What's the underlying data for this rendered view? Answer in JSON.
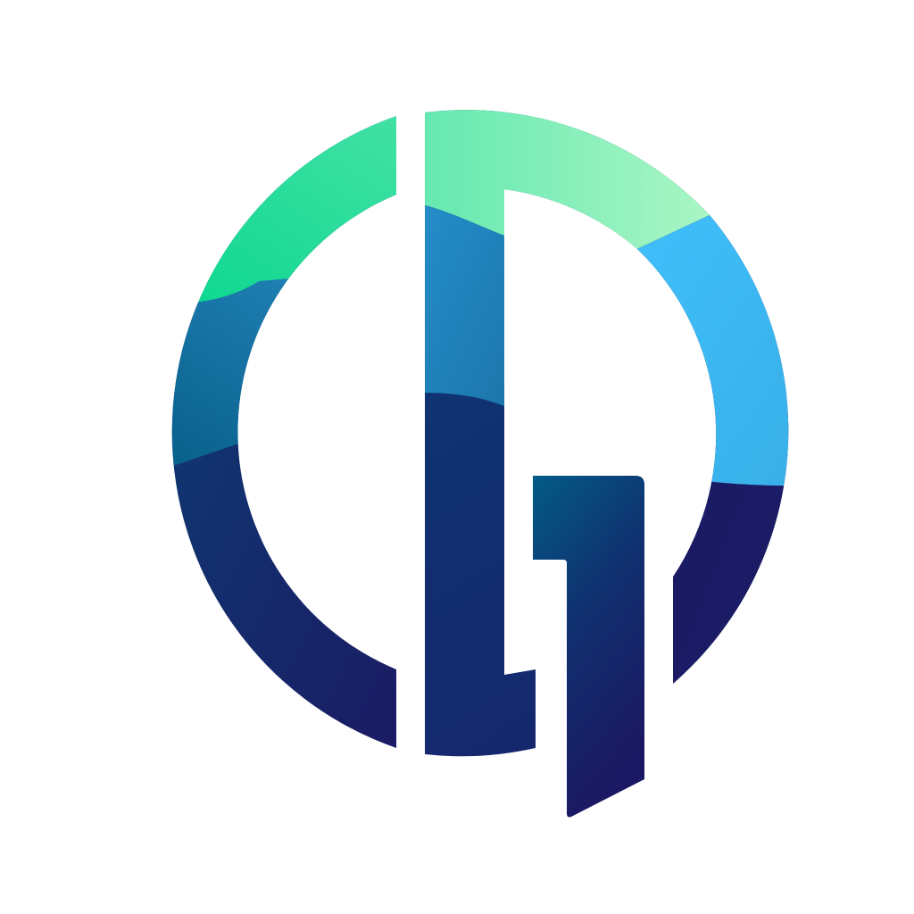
{
  "logo": {
    "icon": "cq-monogram-logo",
    "colors": {
      "background": "#ffffff",
      "green_bright": "#04d68c",
      "green_mint": "#6ce9b0",
      "green_pale": "#b0f7c6",
      "sky_blue": "#40c0fc",
      "light_blue": "#38aee6",
      "steel_blue": "#2186c0",
      "teal_dark": "#035b86",
      "navy": "#0b3c74",
      "navy_deep": "#1a1f66",
      "indigo": "#1c1663"
    }
  }
}
